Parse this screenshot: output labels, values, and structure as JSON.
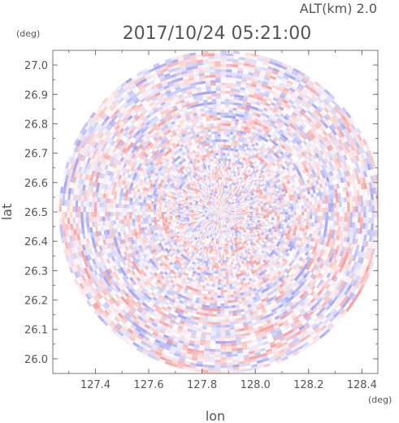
{
  "chart_data": {
    "type": "heatmap",
    "title": "2017/10/24 05:21:00",
    "altitude_label": "ALT(km) 2.0",
    "xlabel": "lon",
    "ylabel": "lat",
    "x_unit": "(deg)",
    "y_unit": "(deg)",
    "xlim": [
      127.24,
      128.46
    ],
    "ylim": [
      25.95,
      27.05
    ],
    "x_ticks": [
      "127.4",
      "127.6",
      "127.8",
      "128.0",
      "128.2",
      "128.4"
    ],
    "y_ticks": [
      "26.0",
      "26.1",
      "26.2",
      "26.3",
      "26.4",
      "26.5",
      "26.6",
      "26.7",
      "26.8",
      "26.9",
      "27.0"
    ],
    "center": {
      "lon": 127.87,
      "lat": 26.5
    },
    "radius_lat_deg": 0.55,
    "colors": {
      "positive": "#f4a4a4",
      "negative": "#a8a8f0",
      "neutral": "#ffffff",
      "axis": "#777777"
    }
  }
}
